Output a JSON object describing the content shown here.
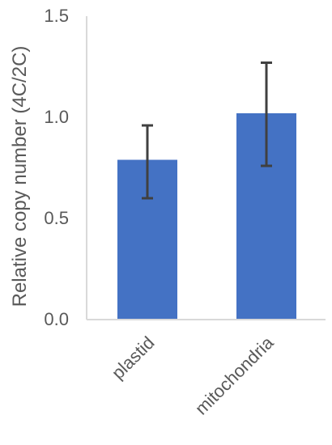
{
  "chart_data": {
    "type": "bar",
    "title": "",
    "xlabel": "",
    "ylabel": "Relative copy number (4C/2C)",
    "categories": [
      "plastid",
      "mitochondria"
    ],
    "series": [
      {
        "values": [
          0.79,
          1.02
        ],
        "error_low": [
          0.6,
          0.76
        ],
        "error_high": [
          0.96,
          1.27
        ]
      }
    ],
    "ylim": [
      0.0,
      1.5
    ],
    "yticks": [
      "0.0",
      "0.5",
      "1.0",
      "1.5"
    ],
    "grid": false,
    "legend": "none",
    "colors": {
      "bar": "#4472C4",
      "error_bar": "#404040",
      "axis": "#D9D9D9",
      "text": "#595959"
    }
  }
}
